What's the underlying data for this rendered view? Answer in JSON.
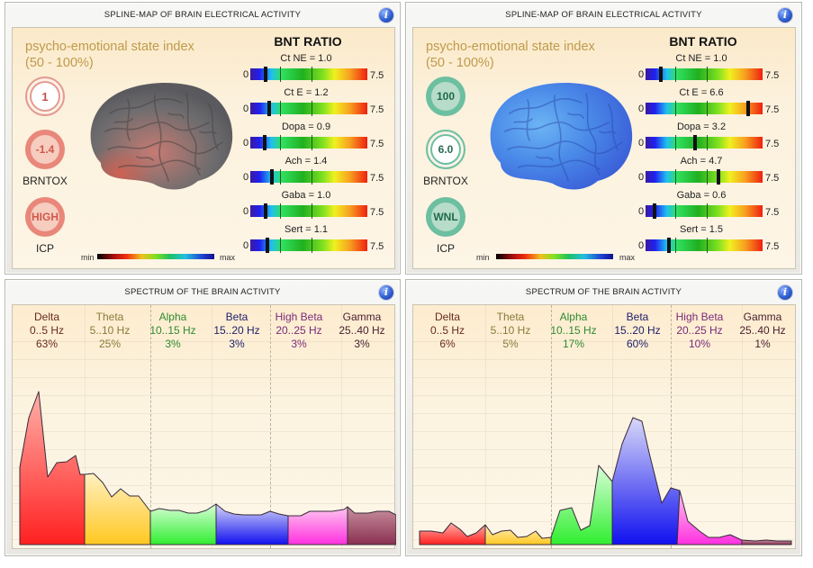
{
  "panels": {
    "spline_left": {
      "title": "SPLINE-MAP OF BRAIN ELECTRICAL ACTIVITY",
      "psi_label_line1": "psycho-emotional state index",
      "psi_label_line2": "(50 - 100%)",
      "psi_value": "1",
      "brntox_value": "-1.4",
      "brntox_label": "BRNTOX",
      "icp_value": "HIGH",
      "icp_label": "ICP",
      "brain_color": "gray-red",
      "scale_min": "min",
      "scale_max": "max",
      "bnt_title": "BNT RATIO",
      "gauges": [
        {
          "name": "Ct NE",
          "caption": "Ct NE = 1.0",
          "value": 1.0
        },
        {
          "name": "Ct E",
          "caption": "Ct E = 1.2",
          "value": 1.2
        },
        {
          "name": "Dopa",
          "caption": "Dopa = 0.9",
          "value": 0.9
        },
        {
          "name": "Ach",
          "caption": "Ach = 1.4",
          "value": 1.4
        },
        {
          "name": "Gaba",
          "caption": "Gaba = 1.0",
          "value": 1.0
        },
        {
          "name": "Sert",
          "caption": "Sert = 1.1",
          "value": 1.1
        }
      ],
      "gauge_min": "0",
      "gauge_max": "7.5"
    },
    "spline_right": {
      "title": "SPLINE-MAP OF BRAIN ELECTRICAL ACTIVITY",
      "psi_label_line1": "psycho-emotional state index",
      "psi_label_line2": "(50 - 100%)",
      "psi_value": "100",
      "brntox_value": "6.0",
      "brntox_label": "BRNTOX",
      "icp_value": "WNL",
      "icp_label": "ICP",
      "brain_color": "blue",
      "scale_min": "min",
      "scale_max": "max",
      "bnt_title": "BNT RATIO",
      "gauges": [
        {
          "name": "Ct NE",
          "caption": "Ct NE = 1.0",
          "value": 1.0
        },
        {
          "name": "Ct E",
          "caption": "Ct E = 6.6",
          "value": 6.6
        },
        {
          "name": "Dopa",
          "caption": "Dopa = 3.2",
          "value": 3.2
        },
        {
          "name": "Ach",
          "caption": "Ach = 4.7",
          "value": 4.7
        },
        {
          "name": "Gaba",
          "caption": "Gaba = 0.6",
          "value": 0.6
        },
        {
          "name": "Sert",
          "caption": "Sert = 1.5",
          "value": 1.5
        }
      ],
      "gauge_min": "0",
      "gauge_max": "7.5"
    },
    "spectrum_left": {
      "title": "SPECTRUM OF THE BRAIN ACTIVITY",
      "bands": [
        {
          "name": "Delta",
          "range": "0..5 Hz",
          "percent": "63%",
          "color": "#6b2a1e"
        },
        {
          "name": "Theta",
          "range": "5..10 Hz",
          "percent": "25%",
          "color": "#8a7a3a"
        },
        {
          "name": "Alpha",
          "range": "10..15 Hz",
          "percent": "3%",
          "color": "#2f8a2f"
        },
        {
          "name": "Beta",
          "range": "15..20 Hz",
          "percent": "3%",
          "color": "#1e1e6b"
        },
        {
          "name": "High Beta",
          "range": "20..25 Hz",
          "percent": "3%",
          "color": "#7a2a7a"
        },
        {
          "name": "Gamma",
          "range": "25..40 Hz",
          "percent": "3%",
          "color": "#4a2030"
        }
      ]
    },
    "spectrum_right": {
      "title": "SPECTRUM OF THE BRAIN ACTIVITY",
      "bands": [
        {
          "name": "Delta",
          "range": "0..5 Hz",
          "percent": "6%",
          "color": "#6b2a1e"
        },
        {
          "name": "Theta",
          "range": "5..10 Hz",
          "percent": "5%",
          "color": "#8a7a3a"
        },
        {
          "name": "Alpha",
          "range": "10..15 Hz",
          "percent": "17%",
          "color": "#2f8a2f"
        },
        {
          "name": "Beta",
          "range": "15..20 Hz",
          "percent": "60%",
          "color": "#1e1e6b"
        },
        {
          "name": "High Beta",
          "range": "20..25 Hz",
          "percent": "10%",
          "color": "#7a2a7a"
        },
        {
          "name": "Gamma",
          "range": "25..40 Hz",
          "percent": "1%",
          "color": "#4a2030"
        }
      ]
    }
  },
  "colors": {
    "alarm_ring": "#e8877a",
    "ok_ring": "#6cbfa0",
    "info_icon": "#2f5fd0",
    "psi_label": "#bf9a4a"
  },
  "info_icon_glyph": "i"
}
